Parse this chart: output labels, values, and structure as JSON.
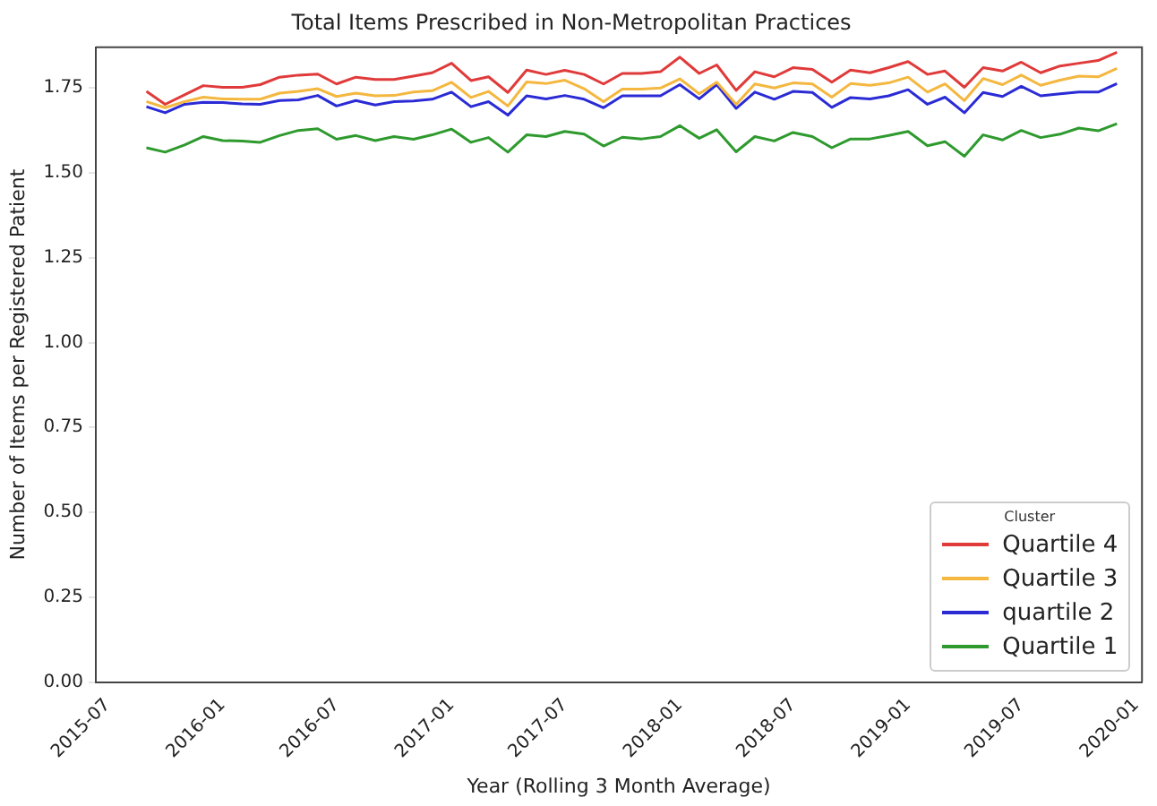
{
  "chart_data": {
    "type": "line",
    "title": "Total Items Prescribed in Non-Metropolitan Practices",
    "xlabel": "Year (Rolling 3 Month Average)",
    "ylabel": "Number of Items per Registered Patient",
    "legend_title": "Cluster",
    "legend": "bottom right",
    "grid": false,
    "x": [
      "2015-09",
      "2015-10",
      "2015-11",
      "2015-12",
      "2016-01",
      "2016-02",
      "2016-03",
      "2016-04",
      "2016-05",
      "2016-06",
      "2016-07",
      "2016-08",
      "2016-09",
      "2016-10",
      "2016-11",
      "2016-12",
      "2017-01",
      "2017-02",
      "2017-03",
      "2017-04",
      "2017-05",
      "2017-06",
      "2017-07",
      "2017-08",
      "2017-09",
      "2017-10",
      "2017-11",
      "2017-12",
      "2018-01",
      "2018-02",
      "2018-03",
      "2018-04",
      "2018-05",
      "2018-06",
      "2018-07",
      "2018-08",
      "2018-09",
      "2018-10",
      "2018-11",
      "2018-12",
      "2019-01",
      "2019-02",
      "2019-03",
      "2019-04",
      "2019-05",
      "2019-06",
      "2019-07",
      "2019-08",
      "2019-09",
      "2019-10",
      "2019-11",
      "2019-12"
    ],
    "xlim": [
      "2015-06-12",
      "2020-01-10"
    ],
    "xticks": [
      {
        "value": "2015-07",
        "label": "2015-07"
      },
      {
        "value": "2016-01",
        "label": "2016-01"
      },
      {
        "value": "2016-07",
        "label": "2016-07"
      },
      {
        "value": "2017-01",
        "label": "2017-01"
      },
      {
        "value": "2017-07",
        "label": "2017-07"
      },
      {
        "value": "2018-01",
        "label": "2018-01"
      },
      {
        "value": "2018-07",
        "label": "2018-07"
      },
      {
        "value": "2019-01",
        "label": "2019-01"
      },
      {
        "value": "2019-07",
        "label": "2019-07"
      },
      {
        "value": "2020-01",
        "label": "2020-01"
      }
    ],
    "ylim": [
      0,
      1.87
    ],
    "yticks": [
      {
        "value": 0,
        "label": "0.00"
      },
      {
        "value": 0.25,
        "label": "0.25"
      },
      {
        "value": 0.5,
        "label": "0.50"
      },
      {
        "value": 0.75,
        "label": "0.75"
      },
      {
        "value": 1,
        "label": "1.00"
      },
      {
        "value": 1.25,
        "label": "1.25"
      },
      {
        "value": 1.5,
        "label": "1.50"
      },
      {
        "value": 1.75,
        "label": "1.75"
      }
    ],
    "series": [
      {
        "name": "Quartile 4",
        "color": "#e03a3a",
        "values": [
          1.74,
          1.702,
          1.73,
          1.757,
          1.752,
          1.752,
          1.76,
          1.782,
          1.788,
          1.791,
          1.762,
          1.782,
          1.775,
          1.775,
          1.785,
          1.795,
          1.823,
          1.772,
          1.783,
          1.737,
          1.803,
          1.79,
          1.802,
          1.79,
          1.762,
          1.793,
          1.793,
          1.798,
          1.841,
          1.793,
          1.818,
          1.743,
          1.798,
          1.783,
          1.81,
          1.805,
          1.767,
          1.803,
          1.795,
          1.81,
          1.828,
          1.79,
          1.8,
          1.752,
          1.81,
          1.8,
          1.826,
          1.795,
          1.815,
          1.823,
          1.831,
          1.855
        ]
      },
      {
        "name": "Quartile 3",
        "color": "#f4b73f",
        "values": [
          1.71,
          1.692,
          1.71,
          1.723,
          1.718,
          1.717,
          1.717,
          1.735,
          1.74,
          1.748,
          1.725,
          1.735,
          1.727,
          1.728,
          1.738,
          1.742,
          1.767,
          1.722,
          1.74,
          1.697,
          1.768,
          1.763,
          1.773,
          1.748,
          1.71,
          1.747,
          1.747,
          1.75,
          1.777,
          1.733,
          1.767,
          1.702,
          1.762,
          1.75,
          1.765,
          1.762,
          1.723,
          1.763,
          1.758,
          1.765,
          1.782,
          1.738,
          1.762,
          1.713,
          1.778,
          1.76,
          1.788,
          1.758,
          1.773,
          1.785,
          1.783,
          1.808
        ]
      },
      {
        "name": "quartile 2",
        "color": "#2b2bd6",
        "values": [
          1.695,
          1.677,
          1.702,
          1.708,
          1.707,
          1.703,
          1.702,
          1.713,
          1.715,
          1.728,
          1.697,
          1.713,
          1.7,
          1.71,
          1.712,
          1.717,
          1.738,
          1.695,
          1.71,
          1.67,
          1.727,
          1.718,
          1.728,
          1.717,
          1.692,
          1.727,
          1.727,
          1.727,
          1.76,
          1.718,
          1.76,
          1.69,
          1.738,
          1.717,
          1.74,
          1.737,
          1.693,
          1.722,
          1.718,
          1.727,
          1.745,
          1.702,
          1.723,
          1.677,
          1.737,
          1.725,
          1.755,
          1.727,
          1.733,
          1.738,
          1.738,
          1.763
        ]
      },
      {
        "name": "Quartile 1",
        "color": "#2e9a2e",
        "values": [
          1.574,
          1.561,
          1.582,
          1.607,
          1.595,
          1.594,
          1.59,
          1.61,
          1.625,
          1.63,
          1.599,
          1.61,
          1.595,
          1.607,
          1.599,
          1.612,
          1.629,
          1.59,
          1.604,
          1.561,
          1.612,
          1.607,
          1.622,
          1.614,
          1.579,
          1.605,
          1.6,
          1.607,
          1.639,
          1.602,
          1.627,
          1.562,
          1.607,
          1.594,
          1.619,
          1.607,
          1.574,
          1.6,
          1.6,
          1.61,
          1.622,
          1.58,
          1.592,
          1.549,
          1.612,
          1.597,
          1.625,
          1.604,
          1.614,
          1.632,
          1.624,
          1.645
        ]
      }
    ]
  }
}
